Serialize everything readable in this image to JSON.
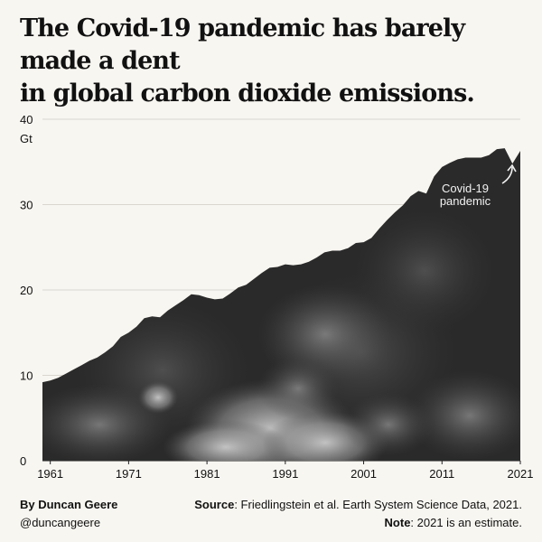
{
  "title_line1": "The Covid-19 pandemic has barely made a dent",
  "title_line2": "in global carbon dioxide emissions.",
  "author": {
    "name": "By Duncan Geere",
    "handle": "@duncangeere"
  },
  "source": {
    "label": "Source",
    "text": ": Friedlingstein et al. Earth System Science Data, 2021."
  },
  "note": {
    "label": "Note",
    "text": ": 2021 is an estimate."
  },
  "annotation": {
    "line1": "Covid-19",
    "line2": "pandemic"
  },
  "chart_data": {
    "type": "area",
    "ylabel": "Gt",
    "ylim": [
      0,
      40
    ],
    "yticks": [
      0,
      10,
      20,
      30,
      40
    ],
    "xlim": [
      1960,
      2021
    ],
    "xticks": [
      1961,
      1971,
      1981,
      1991,
      2001,
      2011,
      2021
    ],
    "grid": true,
    "fill_color": "#2a2a2a",
    "x": [
      1960,
      1961,
      1962,
      1963,
      1964,
      1965,
      1966,
      1967,
      1968,
      1969,
      1970,
      1971,
      1972,
      1973,
      1974,
      1975,
      1976,
      1977,
      1978,
      1979,
      1980,
      1981,
      1982,
      1983,
      1984,
      1985,
      1986,
      1987,
      1988,
      1989,
      1990,
      1991,
      1992,
      1993,
      1994,
      1995,
      1996,
      1997,
      1998,
      1999,
      2000,
      2001,
      2002,
      2003,
      2004,
      2005,
      2006,
      2007,
      2008,
      2009,
      2010,
      2011,
      2012,
      2013,
      2014,
      2015,
      2016,
      2017,
      2018,
      2019,
      2020,
      2021
    ],
    "values": [
      9.2,
      9.4,
      9.7,
      10.2,
      10.7,
      11.2,
      11.7,
      12.1,
      12.7,
      13.4,
      14.5,
      15.0,
      15.7,
      16.7,
      16.9,
      16.8,
      17.6,
      18.2,
      18.8,
      19.5,
      19.4,
      19.1,
      18.9,
      19.0,
      19.6,
      20.3,
      20.6,
      21.3,
      22.0,
      22.6,
      22.7,
      23.0,
      22.9,
      23.0,
      23.3,
      23.8,
      24.4,
      24.6,
      24.6,
      24.9,
      25.5,
      25.6,
      26.1,
      27.2,
      28.2,
      29.1,
      29.9,
      31.0,
      31.6,
      31.3,
      33.3,
      34.4,
      34.9,
      35.3,
      35.5,
      35.5,
      35.5,
      35.8,
      36.5,
      36.6,
      34.8,
      36.3
    ]
  }
}
